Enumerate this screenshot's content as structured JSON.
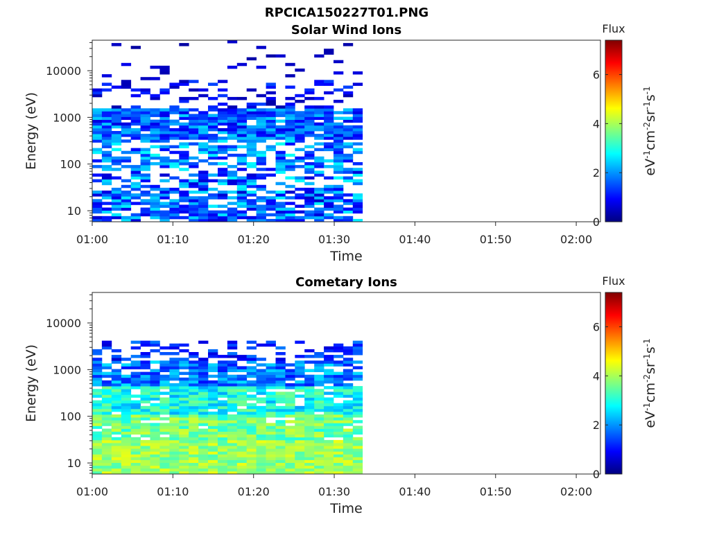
{
  "title": "RPCICA150227T01.PNG",
  "chart_data": [
    {
      "type": "heatmap",
      "title": "Solar Wind Ions",
      "xlabel": "Time",
      "ylabel": "Energy (eV)",
      "x_ticks": [
        "01:00",
        "01:10",
        "01:20",
        "01:30",
        "01:40",
        "01:50",
        "02:00"
      ],
      "x_range_minutes": [
        0,
        63
      ],
      "data_extent_minutes": [
        0,
        33.5
      ],
      "y_scale": "log",
      "y_range": [
        5.8,
        45000
      ],
      "y_ticks": [
        "10",
        "100",
        "1000",
        "10000"
      ],
      "colorbar": {
        "title": "Flux",
        "label": "eV-1cm-2sr-1s-1",
        "ticks": [
          "0",
          "2",
          "4",
          "6"
        ],
        "range": [
          0,
          7.4
        ]
      },
      "pattern": {
        "seed": 11,
        "columns": 28,
        "intervals": [
          {
            "from": 0.78,
            "to": 1.0,
            "fill": 0.08,
            "mean": 0.5,
            "spread": 0.3
          },
          {
            "from": 0.62,
            "to": 0.78,
            "fill": 0.28,
            "mean": 0.9,
            "spread": 0.6
          },
          {
            "from": 0.45,
            "to": 0.62,
            "fill": 0.9,
            "mean": 1.6,
            "spread": 0.9
          },
          {
            "from": 0.3,
            "to": 0.45,
            "fill": 0.55,
            "mean": 1.9,
            "spread": 1.0
          },
          {
            "from": 0.17,
            "to": 0.3,
            "fill": 0.45,
            "mean": 1.7,
            "spread": 1.1
          },
          {
            "from": 0.0,
            "to": 0.17,
            "fill": 0.75,
            "mean": 1.6,
            "spread": 1.1
          }
        ]
      }
    },
    {
      "type": "heatmap",
      "title": "Cometary Ions",
      "xlabel": "Time",
      "ylabel": "Energy (eV)",
      "x_ticks": [
        "01:00",
        "01:10",
        "01:20",
        "01:30",
        "01:40",
        "01:50",
        "02:00"
      ],
      "x_range_minutes": [
        0,
        63
      ],
      "data_extent_minutes": [
        0,
        33.5
      ],
      "y_scale": "log",
      "y_range": [
        5.8,
        45000
      ],
      "y_ticks": [
        "10",
        "100",
        "1000",
        "10000"
      ],
      "colorbar": {
        "title": "Flux",
        "label": "eV-1cm-2sr-1s-1",
        "ticks": [
          "0",
          "2",
          "4",
          "6"
        ],
        "range": [
          0,
          7.4
        ]
      },
      "pattern": {
        "seed": 23,
        "columns": 28,
        "intervals": [
          {
            "from": 0.62,
            "to": 0.73,
            "fill": 0.45,
            "mean": 1.2,
            "spread": 0.6
          },
          {
            "from": 0.48,
            "to": 0.62,
            "fill": 0.85,
            "mean": 1.8,
            "spread": 0.8
          },
          {
            "from": 0.33,
            "to": 0.48,
            "fill": 0.9,
            "mean": 2.9,
            "spread": 0.8
          },
          {
            "from": 0.18,
            "to": 0.33,
            "fill": 0.92,
            "mean": 3.6,
            "spread": 0.7
          },
          {
            "from": 0.0,
            "to": 0.18,
            "fill": 1.0,
            "mean": 3.9,
            "spread": 0.6
          }
        ]
      }
    }
  ]
}
